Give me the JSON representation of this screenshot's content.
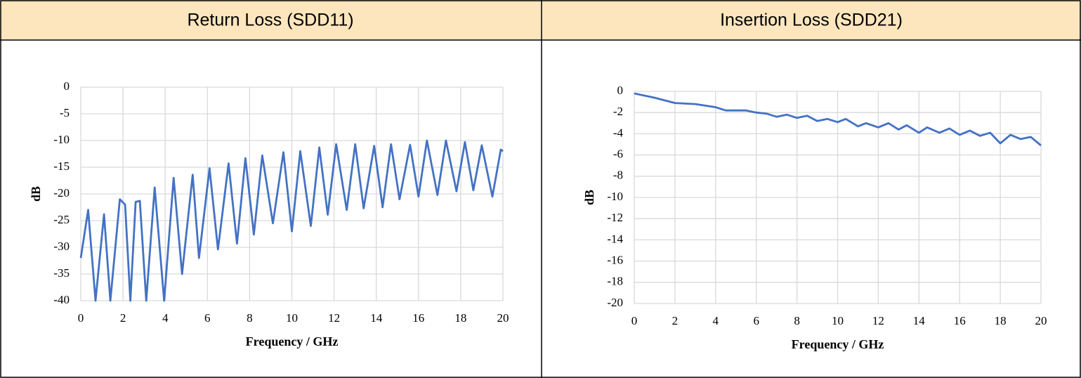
{
  "chart_data": [
    {
      "type": "line",
      "title": "Return Loss (SDD11)",
      "xlabel": "Frequency / GHz",
      "ylabel": "dB",
      "color": "#4472c4",
      "grid": true,
      "xlim": [
        0,
        20
      ],
      "xticks": [
        0,
        2,
        4,
        6,
        8,
        10,
        12,
        14,
        16,
        18,
        20
      ],
      "ylim": [
        -40,
        0
      ],
      "yticks": [
        0,
        -5,
        -10,
        -15,
        -20,
        -25,
        -30,
        -35,
        -40
      ],
      "x": [
        0,
        0.35,
        0.7,
        1.1,
        1.4,
        1.85,
        2.1,
        2.35,
        2.6,
        2.8,
        3.1,
        3.5,
        3.95,
        4.4,
        4.8,
        5.3,
        5.6,
        6.1,
        6.5,
        7.0,
        7.4,
        7.8,
        8.2,
        8.6,
        9.1,
        9.6,
        10.0,
        10.4,
        10.9,
        11.3,
        11.7,
        12.1,
        12.6,
        13.0,
        13.4,
        13.9,
        14.3,
        14.7,
        15.1,
        15.6,
        16.0,
        16.4,
        16.9,
        17.3,
        17.8,
        18.2,
        18.6,
        19.0,
        19.5,
        19.9,
        20
      ],
      "values": [
        -32,
        -23,
        -40,
        -23.8,
        -40,
        -21,
        -22,
        -40,
        -21.5,
        -21.3,
        -40,
        -18.8,
        -40,
        -17,
        -35,
        -16.4,
        -32,
        -15.2,
        -30.4,
        -14.3,
        -29.3,
        -13.3,
        -27.6,
        -12.8,
        -25.5,
        -12.2,
        -27,
        -12,
        -26,
        -11.3,
        -23.9,
        -10.7,
        -23,
        -10.7,
        -22.7,
        -11,
        -22.5,
        -10.7,
        -21,
        -10.8,
        -20.5,
        -10,
        -20.2,
        -10,
        -19.5,
        -10.3,
        -19.3,
        -10.9,
        -20.5,
        -11.7,
        -12
      ]
    },
    {
      "type": "line",
      "title": "Insertion Loss (SDD21)",
      "xlabel": "Frequency / GHz",
      "ylabel": "dB",
      "color": "#4472c4",
      "grid": true,
      "xlim": [
        0,
        20
      ],
      "xticks": [
        0,
        2,
        4,
        6,
        8,
        10,
        12,
        14,
        16,
        18,
        20
      ],
      "ylim": [
        -20,
        0
      ],
      "yticks": [
        0,
        -2,
        -4,
        -6,
        -8,
        -10,
        -12,
        -14,
        -16,
        -18,
        -20
      ],
      "x": [
        0,
        1,
        2,
        3,
        4,
        4.5,
        5.5,
        6,
        6.5,
        7,
        7.5,
        8,
        8.5,
        9,
        9.5,
        10,
        10.4,
        11,
        11.4,
        12,
        12.5,
        13,
        13.4,
        14,
        14.4,
        15,
        15.5,
        16,
        16.5,
        17,
        17.5,
        18,
        18.5,
        19,
        19.5,
        20
      ],
      "values": [
        -0.2,
        -0.6,
        -1.1,
        -1.2,
        -1.5,
        -1.8,
        -1.8,
        -2.0,
        -2.1,
        -2.4,
        -2.2,
        -2.5,
        -2.3,
        -2.8,
        -2.6,
        -2.9,
        -2.6,
        -3.3,
        -3.0,
        -3.4,
        -3.0,
        -3.6,
        -3.2,
        -3.9,
        -3.4,
        -3.9,
        -3.5,
        -4.1,
        -3.7,
        -4.2,
        -3.9,
        -4.9,
        -4.1,
        -4.5,
        -4.3,
        -5.1
      ]
    }
  ]
}
